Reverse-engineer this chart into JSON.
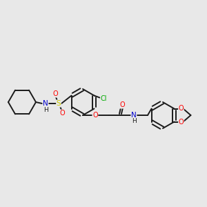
{
  "background_color": "#e8e8e8",
  "bond_color": "#1a1a1a",
  "atom_colors": {
    "O": "#ff0000",
    "N": "#0000cc",
    "S": "#cccc00",
    "Cl": "#00aa00",
    "C": "#1a1a1a",
    "H": "#1a1a1a"
  },
  "figsize": [
    3.0,
    3.0
  ],
  "dpi": 100
}
